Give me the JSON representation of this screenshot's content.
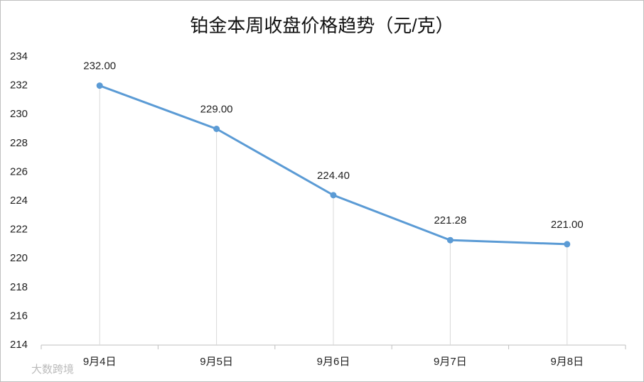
{
  "chart_data": {
    "type": "line",
    "title": "铂金本周收盘价格趋势（元/克）",
    "categories": [
      "9月4日",
      "9月5日",
      "9月6日",
      "9月7日",
      "9月8日"
    ],
    "values": [
      232,
      229,
      224.4,
      221.28,
      221
    ],
    "value_labels": [
      "232.00",
      "229.00",
      "224.40",
      "221.28",
      "221.00"
    ],
    "color": "#5b9bd5",
    "ylim": [
      214,
      234
    ],
    "yticks": [
      214,
      216,
      218,
      220,
      222,
      224,
      226,
      228,
      230,
      232,
      234
    ],
    "drop_lines": true
  },
  "watermark": "大数跨境"
}
